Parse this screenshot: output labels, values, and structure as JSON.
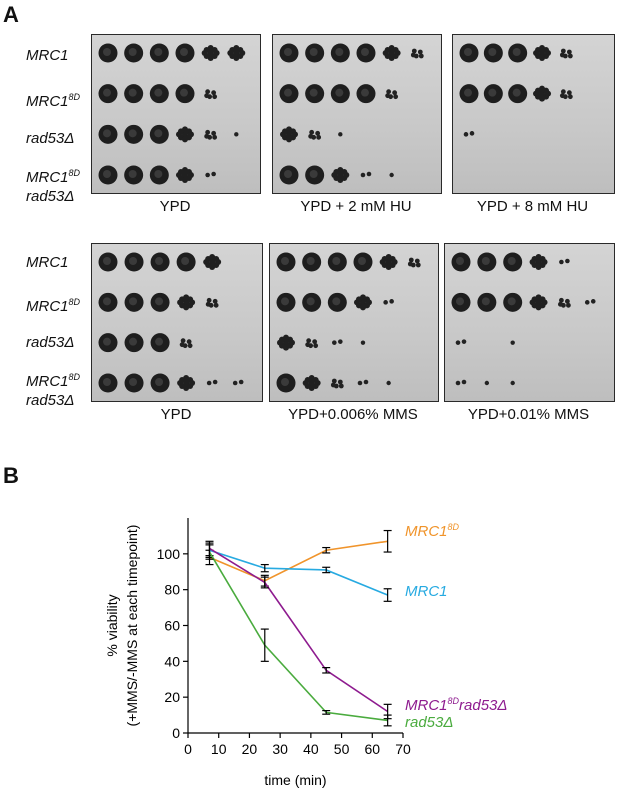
{
  "panel_a": {
    "letter": "A",
    "set1": {
      "strains": [
        {
          "main": "MRC1",
          "sup": "",
          "line2": ""
        },
        {
          "main": "MRC1",
          "sup": "8D",
          "line2": ""
        },
        {
          "main": "rad53Δ",
          "sup": "",
          "line2": ""
        },
        {
          "main": "MRC1",
          "sup": "8D",
          "line2": "rad53Δ"
        }
      ],
      "plates": [
        {
          "label": "YPD",
          "growth": [
            [
              5,
              5,
              5,
              5,
              4,
              4
            ],
            [
              5,
              5,
              5,
              5,
              3,
              0
            ],
            [
              5,
              5,
              5,
              4,
              3,
              1
            ],
            [
              5,
              5,
              5,
              4,
              2,
              0
            ]
          ]
        },
        {
          "label": "YPD + 2 mM HU",
          "growth": [
            [
              5,
              5,
              5,
              5,
              4,
              3
            ],
            [
              5,
              5,
              5,
              5,
              3,
              0
            ],
            [
              4,
              3,
              1,
              0,
              0,
              0
            ],
            [
              5,
              5,
              4,
              2,
              1,
              0
            ]
          ]
        },
        {
          "label": "YPD + 8 mM HU",
          "growth": [
            [
              5,
              5,
              5,
              4,
              3,
              0
            ],
            [
              5,
              5,
              5,
              4,
              3,
              0
            ],
            [
              2,
              0,
              0,
              0,
              0,
              0
            ],
            [
              0,
              0,
              0,
              0,
              0,
              0
            ]
          ]
        }
      ]
    },
    "set2": {
      "strains": [
        {
          "main": "MRC1",
          "sup": "",
          "line2": ""
        },
        {
          "main": "MRC1",
          "sup": "8D",
          "line2": ""
        },
        {
          "main": "rad53Δ",
          "sup": "",
          "line2": ""
        },
        {
          "main": "MRC1",
          "sup": "8D",
          "line2": "rad53Δ"
        }
      ],
      "plates": [
        {
          "label": "YPD",
          "growth": [
            [
              5,
              5,
              5,
              5,
              4,
              0
            ],
            [
              5,
              5,
              5,
              4,
              3,
              0
            ],
            [
              5,
              5,
              5,
              3,
              0,
              0
            ],
            [
              5,
              5,
              5,
              4,
              2,
              2
            ]
          ]
        },
        {
          "label": "YPD+0.006% MMS",
          "growth": [
            [
              5,
              5,
              5,
              5,
              4,
              3
            ],
            [
              5,
              5,
              5,
              4,
              2,
              0
            ],
            [
              4,
              3,
              2,
              1,
              0,
              0
            ],
            [
              5,
              4,
              3,
              2,
              1,
              0
            ]
          ]
        },
        {
          "label": "YPD+0.01% MMS",
          "growth": [
            [
              5,
              5,
              5,
              4,
              2,
              0
            ],
            [
              5,
              5,
              5,
              4,
              3,
              2
            ],
            [
              2,
              0,
              1,
              0,
              0,
              0
            ],
            [
              2,
              1,
              1,
              0,
              0,
              0
            ]
          ]
        }
      ]
    }
  },
  "panel_b": {
    "letter": "B",
    "chart_data": {
      "type": "line",
      "xlabel": "time (min)",
      "ylabel_line1": "% viability",
      "ylabel_line2": "(+MMS/-MMS at each timepoint)",
      "xlim": [
        0,
        70
      ],
      "ylim": [
        0,
        120
      ],
      "xticks": [
        0,
        10,
        20,
        30,
        40,
        50,
        60,
        70
      ],
      "yticks": [
        0,
        20,
        40,
        60,
        80,
        100
      ],
      "grid": false,
      "x": [
        7,
        25,
        45,
        65
      ],
      "series": [
        {
          "name": "MRC1",
          "name_sup": "8D",
          "name_suffix": "",
          "color": "#f0942b",
          "values": [
            98,
            85,
            102,
            107
          ],
          "errors": [
            4,
            3,
            1.5,
            6
          ]
        },
        {
          "name": "MRC1",
          "name_sup": "",
          "name_suffix": "",
          "color": "#27aae1",
          "values": [
            102,
            92,
            91,
            77
          ],
          "errors": [
            4,
            2,
            1.5,
            3.5
          ]
        },
        {
          "name": "MRC1",
          "name_sup": "8D",
          "name_suffix": "rad53Δ",
          "color": "#8e1b8f",
          "values": [
            103,
            84,
            35,
            12
          ],
          "errors": [
            4,
            3,
            1.5,
            4
          ]
        },
        {
          "name": "rad53Δ",
          "name_sup": "",
          "name_suffix": "",
          "color": "#4aab3e",
          "values": [
            101,
            49,
            11.5,
            7
          ],
          "errors": [
            4,
            9,
            1,
            3
          ]
        }
      ]
    }
  }
}
